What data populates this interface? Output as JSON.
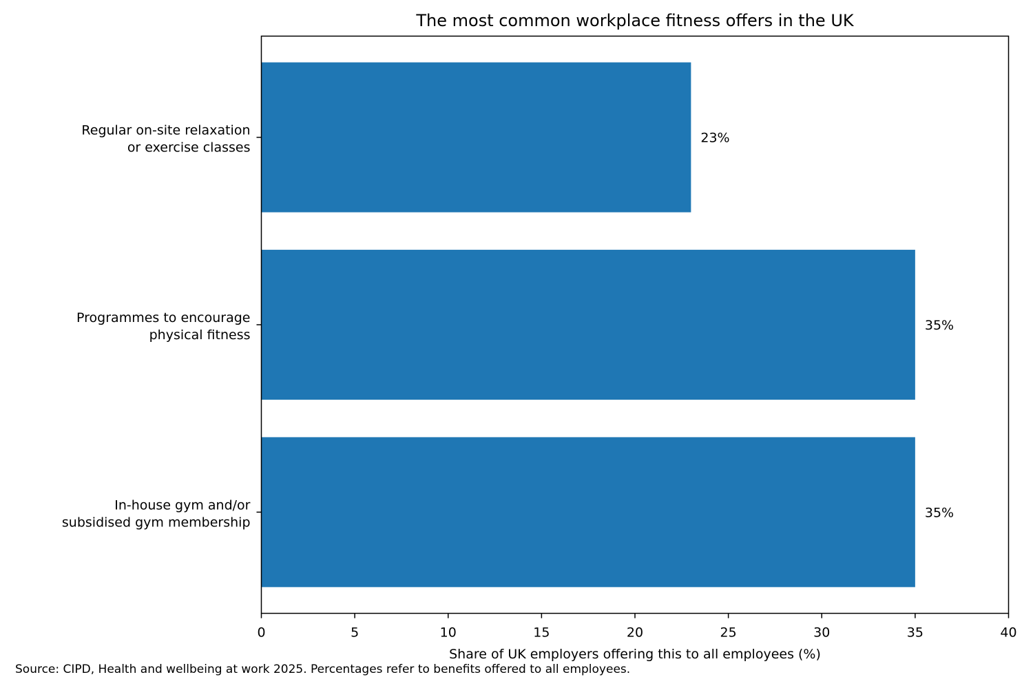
{
  "chart_data": {
    "type": "bar",
    "orientation": "horizontal",
    "title": "The most common workplace fitness offers in the UK",
    "xlabel": "Share of UK employers offering this to all employees (%)",
    "ylabel": "",
    "categories": [
      [
        "In-house gym and/or",
        "subsidised gym membership"
      ],
      [
        "Programmes to encourage",
        "physical fitness"
      ],
      [
        "Regular on-site relaxation",
        "or exercise classes"
      ]
    ],
    "values": [
      35,
      35,
      23
    ],
    "data_labels": [
      "35%",
      "35%",
      "23%"
    ],
    "xlim": [
      0,
      40
    ],
    "xticks": [
      0,
      5,
      10,
      15,
      20,
      25,
      30,
      35,
      40
    ],
    "xtick_labels": [
      "0",
      "5",
      "10",
      "15",
      "20",
      "25",
      "30",
      "35",
      "40"
    ],
    "grid": false,
    "bar_color": "#1f77b4",
    "source_note": "Source: CIPD, Health and wellbeing at work 2025. Percentages refer to benefits offered to all employees."
  }
}
